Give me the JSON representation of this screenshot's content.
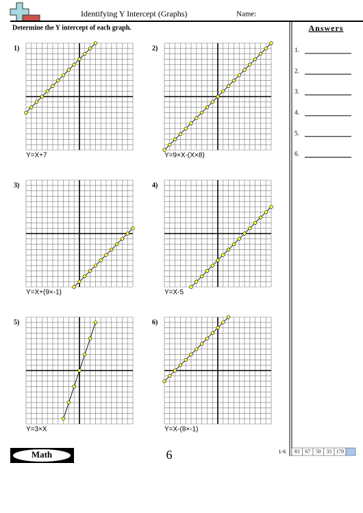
{
  "header": {
    "title": "Identifying Y Intercept (Graphs)",
    "name_label": "Name:"
  },
  "instructions": "Determine the Y intercept of each graph.",
  "answers": {
    "title": "Answers",
    "items": [
      "1.",
      "2.",
      "3.",
      "4.",
      "5.",
      "6."
    ]
  },
  "graph_range": [
    -10,
    10
  ],
  "problems": [
    {
      "number": "1)",
      "equation": "Y=X+7",
      "x": [
        -10,
        -9,
        -8,
        -7,
        -6,
        -5,
        -4,
        -3,
        -2,
        -1,
        0,
        1,
        2,
        3
      ],
      "y": [
        -3,
        -2,
        -1,
        0,
        1,
        2,
        3,
        4,
        5,
        6,
        7,
        8,
        9,
        10
      ]
    },
    {
      "number": "2)",
      "equation": "Y=9×X-(X×8)",
      "x": [
        -10,
        -9,
        -8,
        -7,
        -6,
        -5,
        -4,
        -3,
        -2,
        -1,
        0,
        1,
        2,
        3,
        4,
        5,
        6,
        7,
        8,
        9,
        10
      ],
      "y": [
        -10,
        -9,
        -8,
        -7,
        -6,
        -5,
        -4,
        -3,
        -2,
        -1,
        0,
        1,
        2,
        3,
        4,
        5,
        6,
        7,
        8,
        9,
        10
      ]
    },
    {
      "number": "3)",
      "equation": "Y=X+(9×-1)",
      "x": [
        -1,
        0,
        1,
        2,
        3,
        4,
        5,
        6,
        7,
        8,
        9,
        10
      ],
      "y": [
        -10,
        -9,
        -8,
        -7,
        -6,
        -5,
        -4,
        -3,
        -2,
        -1,
        0,
        1
      ]
    },
    {
      "number": "4)",
      "equation": "Y=X-5",
      "x": [
        -5,
        -4,
        -3,
        -2,
        -1,
        0,
        1,
        2,
        3,
        4,
        5,
        6,
        7,
        8,
        9,
        10
      ],
      "y": [
        -10,
        -9,
        -8,
        -7,
        -6,
        -5,
        -4,
        -3,
        -2,
        -1,
        0,
        1,
        2,
        3,
        4,
        5
      ]
    },
    {
      "number": "5)",
      "equation": "Y=3×X",
      "x": [
        -3,
        -2,
        -1,
        0,
        1,
        2,
        3
      ],
      "y": [
        -9,
        -6,
        -3,
        0,
        3,
        6,
        9
      ]
    },
    {
      "number": "6)",
      "equation": "Y=X-(8×-1)",
      "x": [
        -10,
        -9,
        -8,
        -7,
        -6,
        -5,
        -4,
        -3,
        -2,
        -1,
        0,
        1,
        2
      ],
      "y": [
        -2,
        -1,
        0,
        1,
        2,
        3,
        4,
        5,
        6,
        7,
        8,
        9,
        10
      ]
    }
  ],
  "footer": {
    "subject": "Math",
    "page": "6",
    "range": "1-6",
    "scores": [
      "83",
      "67",
      "50",
      "33",
      "170"
    ]
  }
}
